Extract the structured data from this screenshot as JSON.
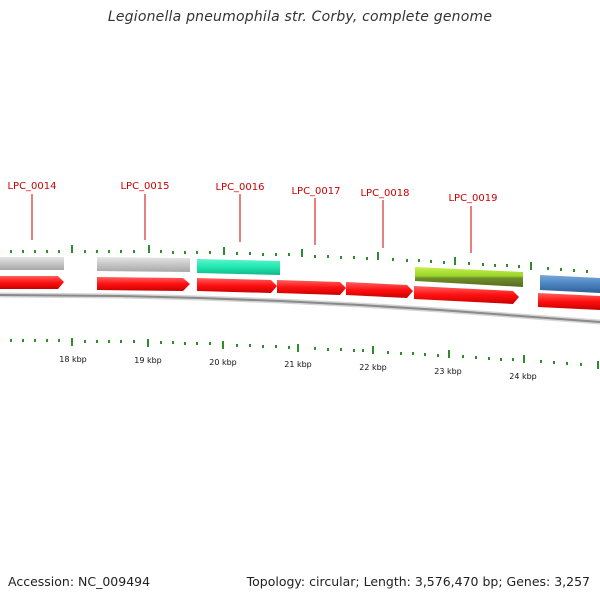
{
  "title": "Legionella pneumophila str. Corby, complete genome",
  "accession": "Accession: NC_009494",
  "summary": "Topology: circular; Length: 3,576,470 bp; Genes: 3,257",
  "colors": {
    "tick": "#2e8b2e",
    "label": "#cc0000",
    "cds": "#ff1a1a",
    "gene_gray": "#c8c8c8",
    "gene_teal": "#22e8b0",
    "gene_green": "#9ad62a",
    "gene_blue": "#4a84c0",
    "backbone": "#888888"
  },
  "scale_labels": [
    "18 kbp",
    "19 kbp",
    "20 kbp",
    "21 kbp",
    "22 kbp",
    "23 kbp",
    "24 kbp"
  ],
  "gene_labels": [
    "LPC_0014",
    "LPC_0015",
    "LPC_0016",
    "LPC_0017",
    "LPC_0018",
    "LPC_0019"
  ]
}
